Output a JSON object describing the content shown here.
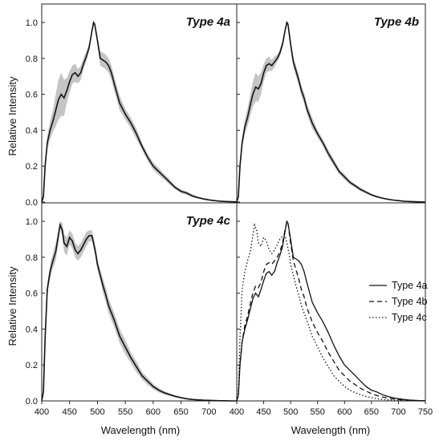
{
  "chart_data": {
    "type": "line",
    "grid": false,
    "ylabel": "Relative Intensity",
    "xlabel": "Wavelength (nm)",
    "xlim": [
      400,
      750
    ],
    "ylim": [
      0,
      1.05
    ],
    "y_ticks": [
      0.0,
      0.2,
      0.4,
      0.6,
      0.8,
      1.0
    ],
    "x_ticks_left": [
      400,
      450,
      500,
      550,
      600,
      650,
      700
    ],
    "x_ticks_right": [
      400,
      450,
      500,
      550,
      600,
      650,
      700,
      750
    ],
    "series": {
      "type4a": {
        "x": [
          400,
          403,
          406,
          410,
          415,
          420,
          425,
          430,
          435,
          440,
          445,
          450,
          455,
          460,
          465,
          470,
          475,
          480,
          485,
          490,
          493,
          495,
          500,
          505,
          510,
          515,
          520,
          525,
          530,
          540,
          550,
          560,
          570,
          580,
          590,
          600,
          610,
          620,
          630,
          640,
          650,
          660,
          670,
          680,
          690,
          700,
          710,
          720,
          730,
          740,
          750
        ],
        "y": [
          0,
          0.03,
          0.2,
          0.33,
          0.4,
          0.45,
          0.51,
          0.57,
          0.6,
          0.58,
          0.62,
          0.67,
          0.71,
          0.72,
          0.7,
          0.72,
          0.77,
          0.81,
          0.86,
          0.95,
          1.0,
          0.99,
          0.9,
          0.8,
          0.79,
          0.78,
          0.76,
          0.72,
          0.66,
          0.55,
          0.49,
          0.44,
          0.38,
          0.31,
          0.25,
          0.2,
          0.17,
          0.14,
          0.11,
          0.08,
          0.06,
          0.05,
          0.035,
          0.025,
          0.018,
          0.012,
          0.008,
          0.005,
          0.003,
          0.002,
          0.001
        ],
        "band": [
          0,
          0.01,
          0.03,
          0.04,
          0.05,
          0.06,
          0.09,
          0.11,
          0.12,
          0.1,
          0.07,
          0.06,
          0.05,
          0.05,
          0.04,
          0.04,
          0.03,
          0.03,
          0.02,
          0.01,
          0.0,
          0.01,
          0.02,
          0.04,
          0.04,
          0.04,
          0.04,
          0.04,
          0.04,
          0.04,
          0.03,
          0.03,
          0.03,
          0.02,
          0.02,
          0.02,
          0.02,
          0.015,
          0.015,
          0.01,
          0.01,
          0.01,
          0.008,
          0.006,
          0.005,
          0.004,
          0.003,
          0.002,
          0.001,
          0.001,
          0.001
        ]
      },
      "type4b": {
        "x": [
          400,
          403,
          406,
          410,
          415,
          420,
          425,
          430,
          435,
          440,
          445,
          450,
          455,
          460,
          465,
          470,
          475,
          480,
          485,
          490,
          493,
          495,
          500,
          505,
          510,
          515,
          520,
          525,
          530,
          540,
          550,
          560,
          570,
          580,
          590,
          600,
          610,
          620,
          630,
          640,
          650,
          660,
          670,
          680,
          690,
          700,
          710,
          720,
          730,
          740,
          750
        ],
        "y": [
          0,
          0.03,
          0.2,
          0.33,
          0.42,
          0.47,
          0.54,
          0.6,
          0.64,
          0.63,
          0.66,
          0.72,
          0.76,
          0.77,
          0.76,
          0.78,
          0.8,
          0.83,
          0.88,
          0.96,
          1.0,
          0.99,
          0.88,
          0.78,
          0.73,
          0.68,
          0.62,
          0.58,
          0.52,
          0.44,
          0.38,
          0.33,
          0.27,
          0.22,
          0.17,
          0.14,
          0.11,
          0.09,
          0.07,
          0.055,
          0.04,
          0.03,
          0.022,
          0.016,
          0.011,
          0.008,
          0.005,
          0.003,
          0.002,
          0.001,
          0.0
        ],
        "band": [
          0,
          0.01,
          0.02,
          0.03,
          0.04,
          0.05,
          0.06,
          0.07,
          0.08,
          0.07,
          0.06,
          0.05,
          0.04,
          0.04,
          0.03,
          0.03,
          0.02,
          0.02,
          0.02,
          0.01,
          0.0,
          0.01,
          0.02,
          0.03,
          0.03,
          0.03,
          0.03,
          0.03,
          0.03,
          0.03,
          0.02,
          0.02,
          0.02,
          0.02,
          0.015,
          0.015,
          0.012,
          0.01,
          0.01,
          0.008,
          0.006,
          0.005,
          0.004,
          0.003,
          0.002,
          0.002,
          0.001,
          0.001,
          0.001,
          0.0,
          0.0
        ]
      },
      "type4c": {
        "x": [
          400,
          403,
          406,
          410,
          415,
          420,
          425,
          430,
          433,
          437,
          440,
          445,
          450,
          455,
          460,
          465,
          470,
          475,
          480,
          485,
          490,
          493,
          497,
          500,
          505,
          510,
          515,
          520,
          525,
          530,
          540,
          550,
          560,
          570,
          580,
          590,
          600,
          610,
          620,
          630,
          640,
          650,
          660,
          670,
          680,
          690,
          700,
          710,
          720,
          730,
          740,
          750
        ],
        "y": [
          0,
          0.05,
          0.35,
          0.62,
          0.72,
          0.78,
          0.83,
          0.92,
          0.98,
          0.95,
          0.88,
          0.86,
          0.91,
          0.89,
          0.84,
          0.82,
          0.84,
          0.87,
          0.9,
          0.92,
          0.92,
          0.88,
          0.82,
          0.76,
          0.7,
          0.64,
          0.59,
          0.53,
          0.49,
          0.45,
          0.36,
          0.3,
          0.24,
          0.19,
          0.14,
          0.11,
          0.08,
          0.06,
          0.045,
          0.035,
          0.025,
          0.018,
          0.012,
          0.008,
          0.006,
          0.004,
          0.003,
          0.002,
          0.001,
          0.001,
          0.0,
          0.0
        ],
        "band": [
          0,
          0.01,
          0.02,
          0.03,
          0.04,
          0.04,
          0.05,
          0.04,
          0.02,
          0.04,
          0.05,
          0.05,
          0.04,
          0.04,
          0.04,
          0.04,
          0.04,
          0.04,
          0.04,
          0.03,
          0.03,
          0.03,
          0.03,
          0.03,
          0.03,
          0.04,
          0.04,
          0.04,
          0.04,
          0.04,
          0.04,
          0.04,
          0.03,
          0.03,
          0.02,
          0.02,
          0.015,
          0.012,
          0.01,
          0.008,
          0.006,
          0.005,
          0.004,
          0.003,
          0.002,
          0.002,
          0.001,
          0.001,
          0.001,
          0.0,
          0.0,
          0.0
        ]
      }
    },
    "panels": [
      {
        "title": "Type 4a",
        "series_key": "type4a",
        "band": true
      },
      {
        "title": "Type 4b",
        "series_key": "type4b",
        "band": true
      },
      {
        "title": "Type 4c",
        "series_key": "type4c",
        "band": true
      },
      {
        "title": "",
        "legend": true,
        "overlay": [
          {
            "name": "Type 4a",
            "series_key": "type4a",
            "dash": "solid"
          },
          {
            "name": "Type 4b",
            "series_key": "type4b",
            "dash": "dashed"
          },
          {
            "name": "Type 4c",
            "series_key": "type4c",
            "dash": "dotted"
          }
        ]
      }
    ],
    "legend_position": "right"
  }
}
